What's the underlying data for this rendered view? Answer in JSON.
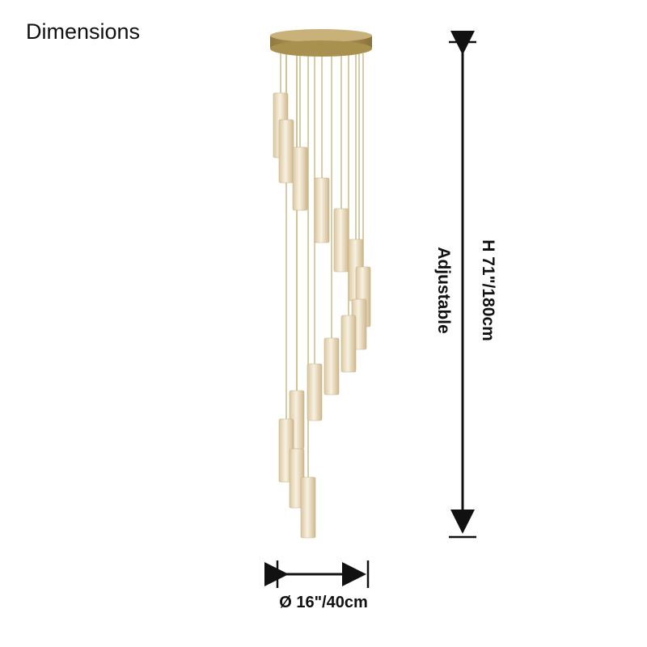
{
  "title": "Dimensions",
  "height_label": "H 71\"/180cm",
  "adjustable_label": "Adjustable",
  "diameter_label": "Ø 16\"/40cm",
  "colors": {
    "canopy": "#b39a5a",
    "shade": "#efe4cc",
    "cord": "#c9bb8a",
    "arrow": "#111111"
  },
  "pendant_count": 15
}
